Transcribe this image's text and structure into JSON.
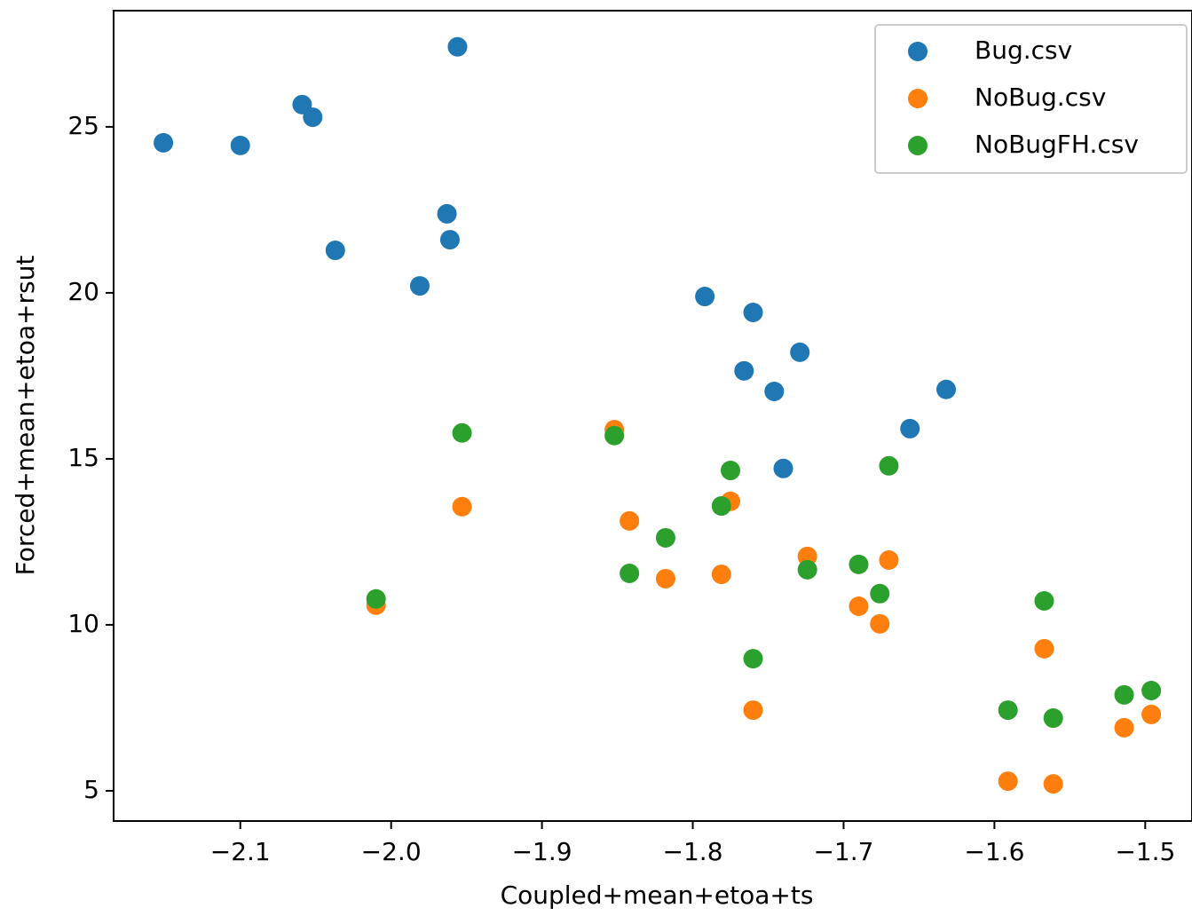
{
  "chart_data": {
    "type": "scatter",
    "xlabel": "Coupled+mean+etoa+ts",
    "ylabel": "Forced+mean+etoa+rsut",
    "xlim": [
      -2.184,
      -1.469
    ],
    "ylim": [
      4.09,
      28.5
    ],
    "xticks": [
      {
        "value": -2.1,
        "label": "−2.1"
      },
      {
        "value": -2.0,
        "label": "−2.0"
      },
      {
        "value": -1.9,
        "label": "−1.9"
      },
      {
        "value": -1.8,
        "label": "−1.8"
      },
      {
        "value": -1.7,
        "label": "−1.7"
      },
      {
        "value": -1.6,
        "label": "−1.6"
      },
      {
        "value": -1.5,
        "label": "−1.5"
      }
    ],
    "yticks": [
      5,
      10,
      15,
      20,
      25
    ],
    "legend": "upper right",
    "series": [
      {
        "name": "Bug.csv",
        "color": "#1f77b4",
        "x": [
          -2.151,
          -2.1,
          -2.059,
          -2.052,
          -1.956,
          -2.037,
          -1.963,
          -1.961,
          -1.981,
          -1.792,
          -1.76,
          -1.766,
          -1.729,
          -1.746,
          -1.74,
          -1.632,
          -1.656
        ],
        "y": [
          24.52,
          24.44,
          25.67,
          25.29,
          27.41,
          21.28,
          22.38,
          21.6,
          20.21,
          19.89,
          19.41,
          17.65,
          18.21,
          17.03,
          14.71,
          17.09,
          15.91
        ]
      },
      {
        "name": "NoBug.csv",
        "color": "#ff7f0e",
        "x": [
          -2.01,
          -1.953,
          -1.852,
          -1.842,
          -1.818,
          -1.775,
          -1.781,
          -1.76,
          -1.724,
          -1.69,
          -1.67,
          -1.676,
          -1.567,
          -1.591,
          -1.561,
          -1.514,
          -1.496
        ],
        "y": [
          10.59,
          13.56,
          15.88,
          13.13,
          11.39,
          13.72,
          11.52,
          7.43,
          12.06,
          10.56,
          11.95,
          10.03,
          9.28,
          5.29,
          5.21,
          6.9,
          7.3
        ]
      },
      {
        "name": "NoBugFH.csv",
        "color": "#2ca02c",
        "x": [
          -2.01,
          -1.953,
          -1.852,
          -1.842,
          -1.818,
          -1.775,
          -1.781,
          -1.76,
          -1.724,
          -1.69,
          -1.67,
          -1.676,
          -1.567,
          -1.591,
          -1.561,
          -1.514,
          -1.496
        ],
        "y": [
          10.78,
          15.78,
          15.7,
          11.55,
          12.62,
          14.65,
          13.58,
          8.98,
          11.66,
          11.82,
          14.79,
          10.94,
          10.72,
          7.43,
          7.19,
          7.89,
          8.02
        ]
      }
    ]
  }
}
